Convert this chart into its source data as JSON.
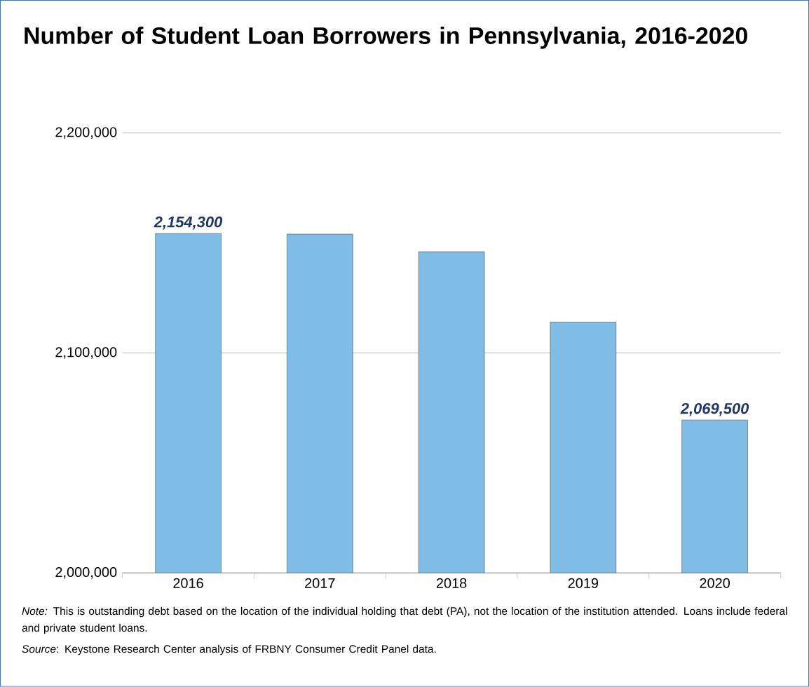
{
  "chart_data": {
    "type": "bar",
    "title": "Number of Student Loan Borrowers in Pennsylvania, 2016-2020",
    "categories": [
      "2016",
      "2017",
      "2018",
      "2019",
      "2020"
    ],
    "values": [
      2154300,
      2154000,
      2146000,
      2114000,
      2069500
    ],
    "value_labels": [
      "2,154,300",
      null,
      null,
      null,
      "2,069,500"
    ],
    "color": "#7fbce6",
    "ylim": [
      2000000,
      2200000
    ],
    "yticks": [
      {
        "value": 2000000,
        "label": "2,000,000"
      },
      {
        "value": 2100000,
        "label": "2,100,000"
      },
      {
        "value": 2200000,
        "label": "2,200,000"
      }
    ],
    "grid": "y",
    "annotations": [
      "*Note:* This is outstanding debt based on the location of the individual holding that debt (PA), not the location of the institution attended. Loans include federal and private student loans.",
      "*Source*: Keystone Research Center analysis of FRBNY Consumer Credit Panel data."
    ]
  }
}
